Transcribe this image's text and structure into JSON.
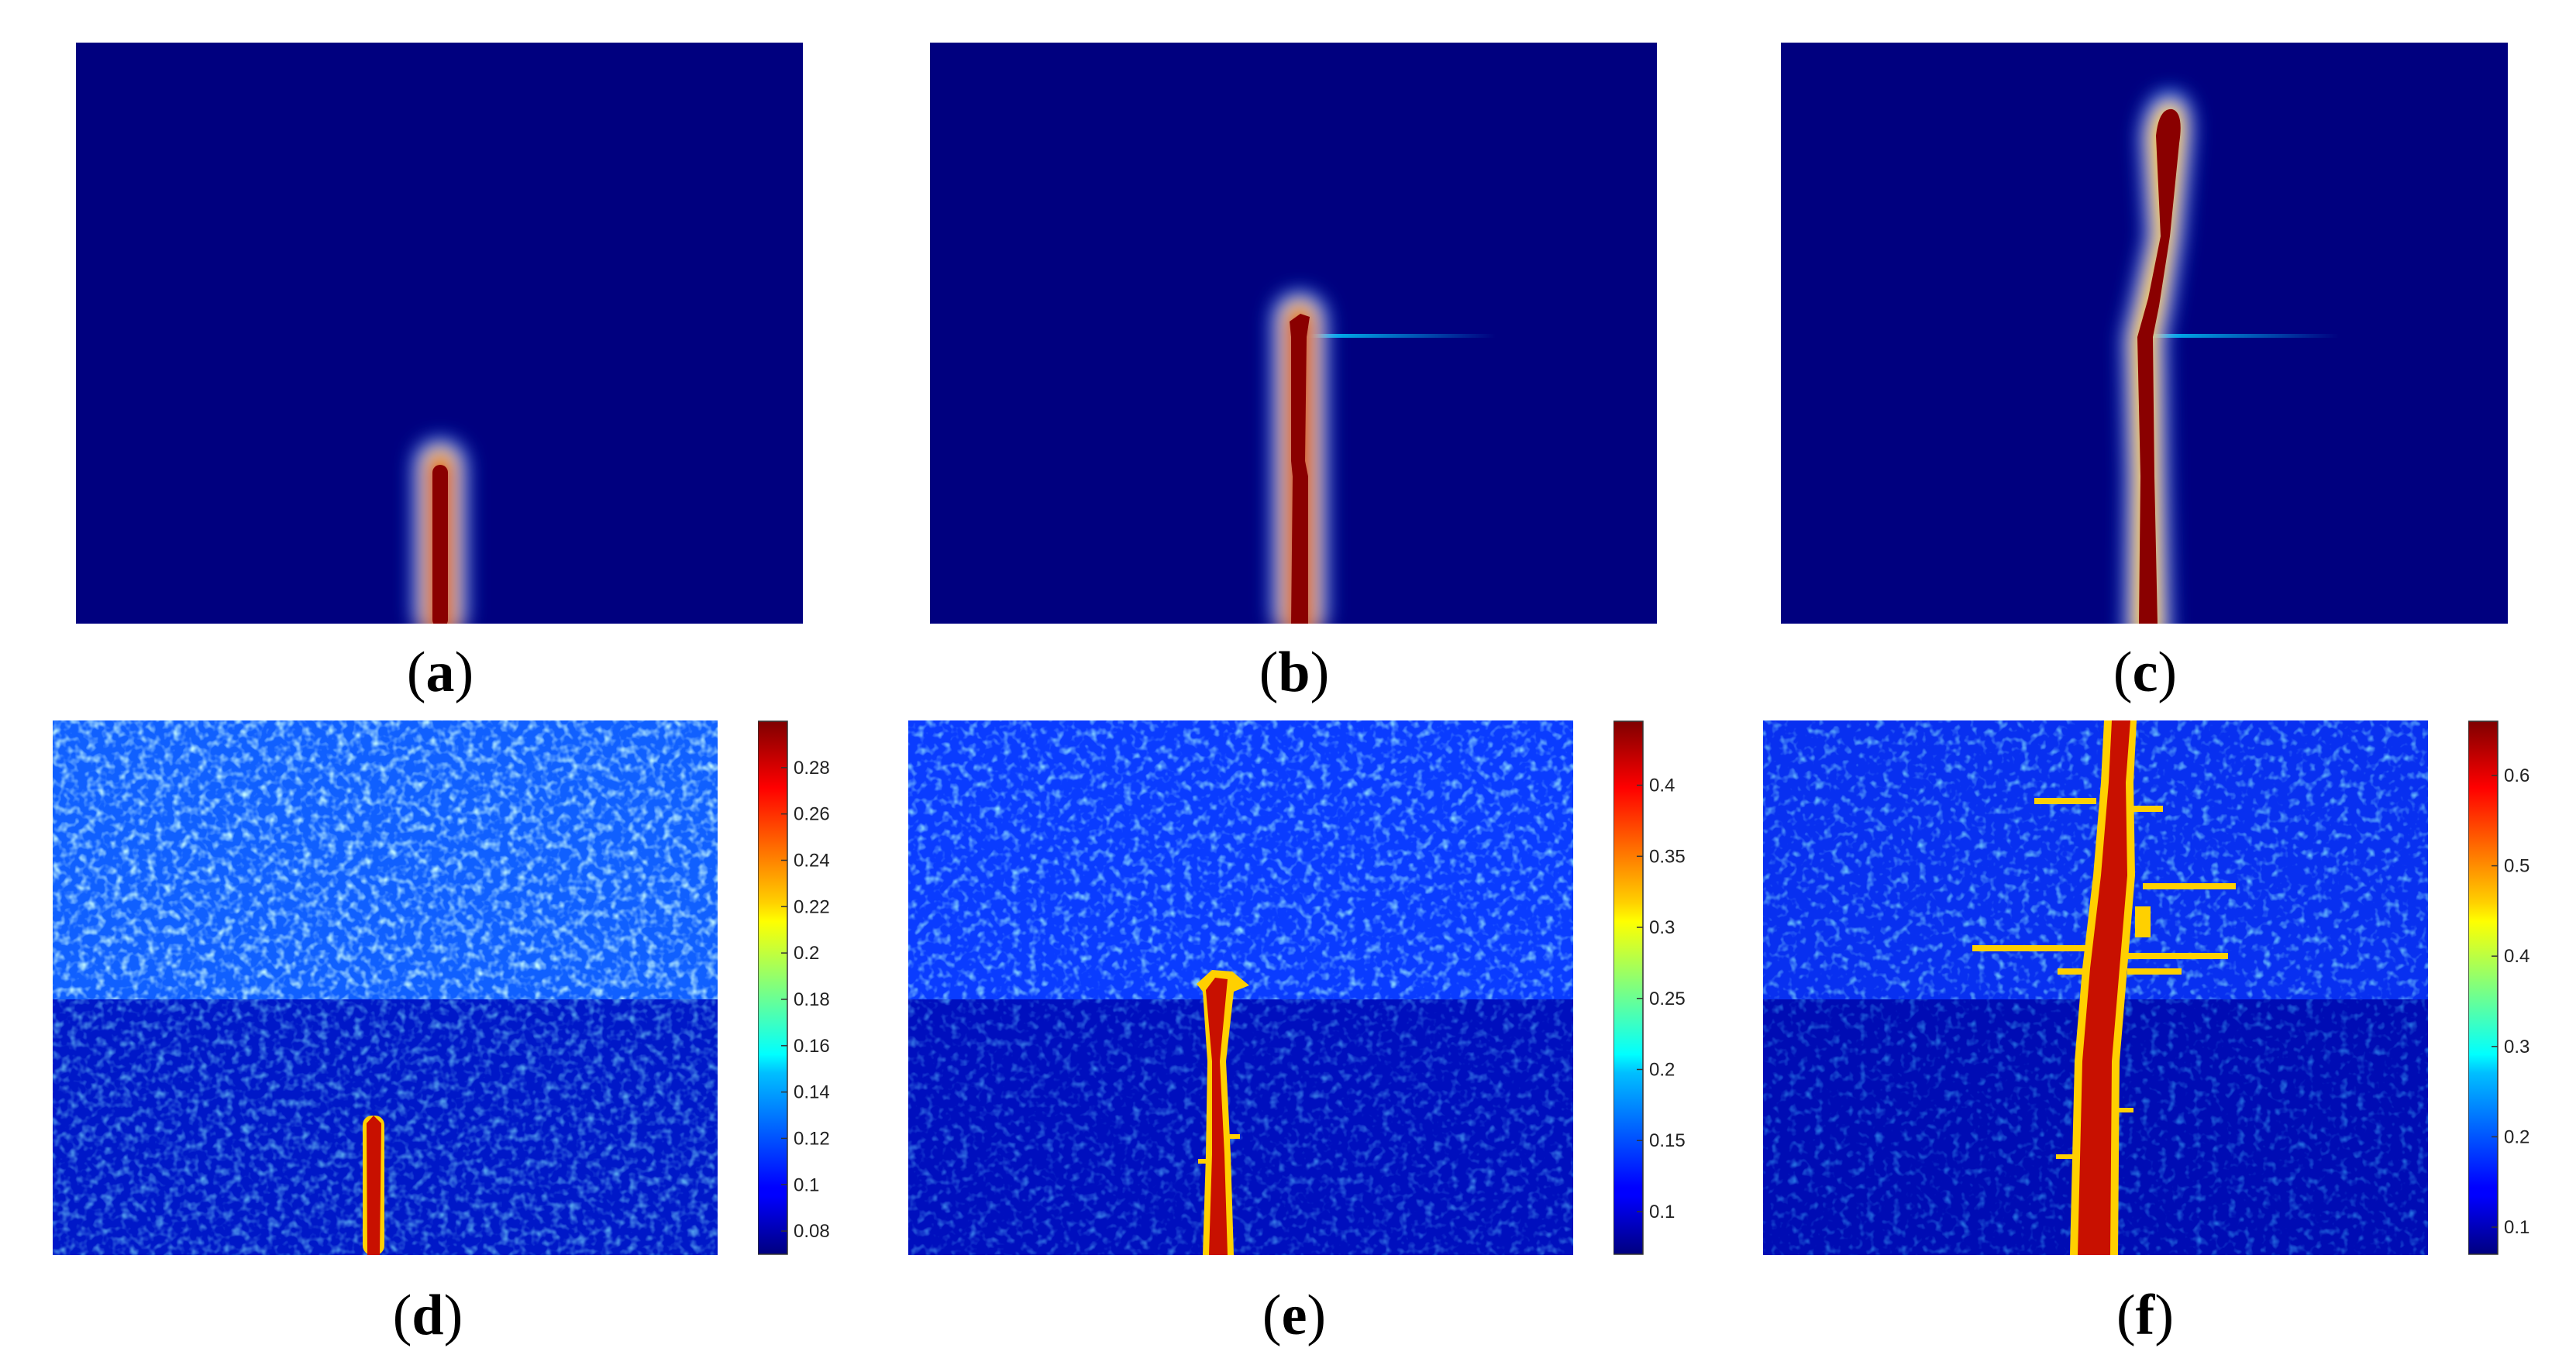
{
  "figure": {
    "panels": [
      {
        "id": "a",
        "caption_letter": "a"
      },
      {
        "id": "b",
        "caption_letter": "b"
      },
      {
        "id": "c",
        "caption_letter": "c"
      },
      {
        "id": "d",
        "caption_letter": "d"
      },
      {
        "id": "e",
        "caption_letter": "e"
      },
      {
        "id": "f",
        "caption_letter": "f"
      }
    ],
    "colorbars": [
      {
        "panel": "d",
        "min": 0.07,
        "max": 0.3,
        "ticks": [
          "0.08",
          "0.1",
          "0.12",
          "0.14",
          "0.16",
          "0.18",
          "0.2",
          "0.22",
          "0.24",
          "0.26",
          "0.28"
        ]
      },
      {
        "panel": "e",
        "min": 0.07,
        "max": 0.445,
        "ticks": [
          "0.1",
          "0.15",
          "0.2",
          "0.25",
          "0.3",
          "0.35",
          "0.4"
        ]
      },
      {
        "panel": "f",
        "min": 0.07,
        "max": 0.66,
        "ticks": [
          "0.1",
          "0.2",
          "0.3",
          "0.4",
          "0.5",
          "0.6"
        ]
      }
    ],
    "colormap": "jet",
    "colors": {
      "background_low": "#00007f",
      "crack_high": "#7f0000"
    }
  }
}
